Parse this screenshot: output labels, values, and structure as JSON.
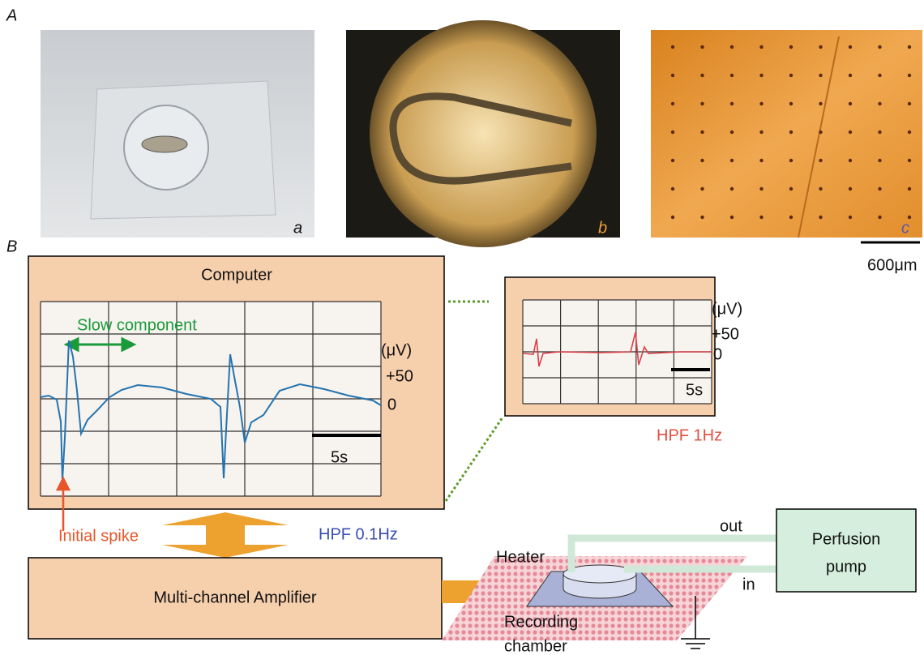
{
  "panel_a": {
    "label": "A",
    "photos": [
      {
        "label": "a"
      },
      {
        "label": "b"
      },
      {
        "label": "c"
      }
    ],
    "scale_bar": "600μm"
  },
  "panel_b": {
    "label": "B",
    "computer": {
      "title": "Computer",
      "slow_component": "Slow component",
      "unit": "(μV)",
      "amplitude": "+50",
      "zero": "0",
      "time_scale": "5s",
      "initial_spike": "Initial spike",
      "filter": "HPF 0.1Hz"
    },
    "inset": {
      "unit": "(μV)",
      "amplitude": "+50",
      "zero": "0",
      "time_scale": "5s",
      "filter": "HPF 1Hz"
    },
    "amplifier": "Multi-channel Amplifier",
    "heater": "Heater",
    "chamber": [
      "Recording",
      "chamber"
    ],
    "outlet": "out",
    "inlet": "in",
    "pump": [
      "Perfusion",
      "pump"
    ]
  }
}
